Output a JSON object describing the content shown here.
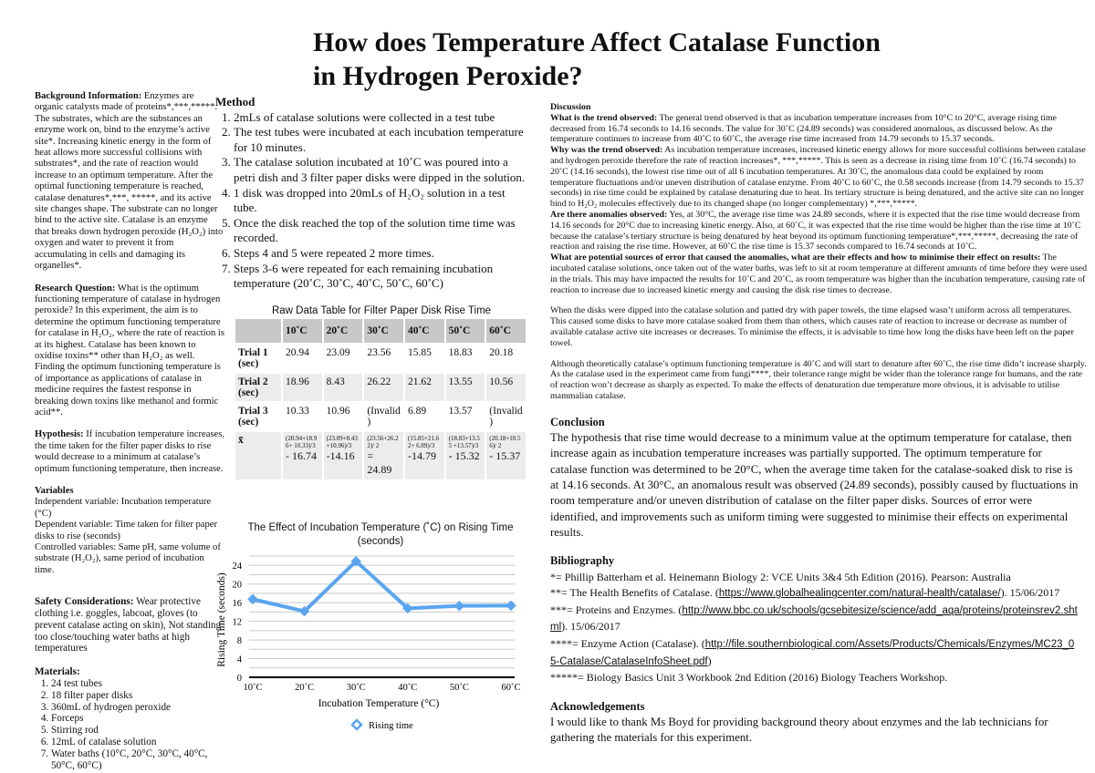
{
  "title": "How does Temperature Affect Catalase Function in Hydrogen Peroxide?",
  "left": {
    "background": {
      "label": "Background Information:",
      "text": " Enzymes are organic catalysts made of proteins*,***,*****. The substrates, which are the substances an enzyme work on, bind to the enzyme’s active site*. Increasing kinetic energy in the form of heat allows more successful collisions with substrates*, and the rate of reaction would increase to an optimum temperature. After the optimal functioning temperature is reached, catalase denatures*,***, *****, and its active site changes shape. The substrate can no longer bind to the active site. Catalase is an enzyme that breaks down hydrogen peroxide (H₂O₂) into oxygen and water to prevent it from accumulating in cells and damaging its organelles*."
    },
    "research": {
      "label": "Research Question:",
      "text": " What is the optimum functioning temperature of catalase in hydrogen peroxide? In this experiment, the aim is to determine the optimum functioning temperature for catalase in H₂O₂, where the rate of reaction is at its highest. Catalase has been known to oxidise toxins** other than H₂O₂ as well. Finding the optimum functioning temperature is of importance as applications of catalase in medicine requires the fastest response in breaking down toxins like methanol and formic acid**."
    },
    "hypothesis": {
      "label": "Hypothesis:",
      "text": " If incubation temperature increases, the time taken for the filter paper disks to rise would decrease to a minimum at catalase’s optimum functioning temperature, then increase."
    },
    "variables": {
      "label": "Variables",
      "independent": "Independent variable: Incubation temperature (°C)",
      "dependent": "Dependent variable: Time taken for filter paper disks to rise (seconds)",
      "controlled": "Controlled variables: Same pH, same volume of substrate (H₂O₂), same period of incubation time."
    },
    "safety": {
      "label": "Safety Considerations:",
      "text": " Wear protective clothing i.e. goggles, labcoat, gloves (to prevent catalase acting on skin), Not standing too close/touching water baths at high temperatures"
    },
    "materials": {
      "label": "Materials:",
      "items": [
        "24 test tubes",
        "18 filter paper disks",
        "360mL of hydrogen peroxide",
        "Forceps",
        "Stirring rod",
        "12mL of catalase solution",
        "Water baths (10°C, 20°C, 30°C, 40°C, 50°C, 60°C)"
      ]
    }
  },
  "method": {
    "label": "Method",
    "steps": [
      "2mLs of catalase solutions were collected in a test tube",
      "The test tubes were incubated at each incubation temperature for 10 minutes.",
      "The catalase solution incubated at 10˚C was poured into a petri dish and 3 filter paper disks were dipped in the solution.",
      "1 disk was dropped into 20mLs of H₂O₂ solution in a test tube.",
      "Once the disk reached the top of the solution time time was recorded.",
      "Steps 4 and 5 were repeated 2 more times.",
      "Steps 3-6 were repeated for each remaining incubation temperature (20˚C, 30˚C, 40˚C, 50˚C, 60˚C)"
    ]
  },
  "table": {
    "title": "Raw Data Table for Filter Paper Disk Rise Time",
    "headers": [
      "",
      "10˚C",
      "20˚C",
      "30˚C",
      "40˚C",
      "50˚C",
      "60˚C"
    ],
    "rows": [
      [
        "Trial 1 (sec)",
        "20.94",
        "23.09",
        "23.56",
        "15.85",
        "18.83",
        "20.18"
      ],
      [
        "Trial 2 (sec)",
        "18.96",
        "8.43",
        "26.22",
        "21.62",
        "13.55",
        "10.56"
      ],
      [
        "Trial 3 (sec)",
        "10.33",
        "10.96",
        "(Invalid)",
        "6.89",
        "13.57",
        "(Invalid)"
      ]
    ],
    "mean_label": "x̄",
    "mean_formulas": [
      "(20.94+18.96+ 10.33)/3",
      "(23.09+8.43 +10.96)/3",
      "(23.56+26.22)/ 2",
      "(15.85+21.62+ 6.89)/3",
      "(18.83+13.55 +13.57)/3",
      "(20.18+10.56)/ 2"
    ],
    "mean_values": [
      "- 16.74",
      "-14.16",
      "= 24.89",
      "-14.79",
      "- 15.32",
      "- 15.37"
    ]
  },
  "chart_data": {
    "type": "line",
    "title": "The Effect of Incubation Temperature (˚C) on Rising Time (seconds)",
    "xlabel": "Incubation Temperature (°C)",
    "ylabel": "Rising Time (seconds)",
    "categories": [
      "10˚C",
      "20˚C",
      "30˚C",
      "40˚C",
      "50˚C",
      "60˚C"
    ],
    "series": [
      {
        "name": "Rising time",
        "values": [
          16.74,
          14.16,
          24.89,
          14.79,
          15.32,
          15.37
        ],
        "color": "#5aa5f0"
      }
    ],
    "ylim": [
      0,
      26
    ],
    "yticks": [
      0,
      4,
      8,
      12,
      16,
      20,
      24
    ],
    "grid": true,
    "legend": "bottom"
  },
  "discussion": {
    "label": "Discussion",
    "trend_label": "What is the trend observed:",
    "trend": " The general trend observed is that as incubation temperature increases from 10°C to 20°C, average rising time decreased from 16.74 seconds to 14.16 seconds. The value for 30˚C (24.89 seconds) was considered anomalous, as discussed below. As the temperature continues to increase from 40˚C to 60˚C, the average rise time increased from 14.79 seconds to 15.37 seconds.",
    "why_label": "Why was the trend observed:",
    "why": " As incubation temperature increases, increased kinetic energy allows for more successful collisions between catalase and hydrogen peroxide therefore the rate of reaction increases*, ***,*****. This is seen as a decrease in rising time from 10˚C  (16.74 seconds) to 20˚C (14.16 seconds), the lowest rise time out of all 6 incubation temperatures. At 30˚C, the anomalous data could be explained by room temperature fluctuations and/or uneven distribution of catalase enzyme. From 40˚C to 60˚C, the 0.58 seconds increase (from 14.79 seconds to 15.37 seconds) in rise time could be explained by catalase denaturing due to heat. Its tertiary structure is being denatured, and the active site can no longer bind to H₂O₂ molecules effectively due to its changed shape (no longer complementary) *,***,*****.",
    "anomalies_label": "Are there anomalies observed:",
    "anomalies": " Yes, at 30°C, the average rise time was 24.89 seconds, where it is expected that the rise time would decrease from 14.16 seconds for 20°C due to increasing kinetic energy. Also, at 60˚C, it was expected that the rise time would be higher than the rise time at 10˚C because the catalase’s tertiary structure is being denatured by heat beyond its optimum functioning temperature*,***,*****, decreasing the rate of reaction and raising the rise time. However, at 60˚C the rise time is 15.37 seconds compared to 16.74 seconds at 10˚C.",
    "errors_label": "What are potential sources of error that caused the anomalies, what are their effects and how to minimise their effect on results:",
    "errors": " The incubated catalase solutions, once taken out of the water baths, was left to sit at room temperature at different amounts of time before they were used in the trials. This may have impacted the results for 10˚C and 20˚C, as room temperature was higher than the incubation temperature, causing rate of reaction to increase due to increased kinetic energy and causing the disk rise times to decrease.",
    "para2": "When the disks were dipped into the catalase solution and patted dry with paper towels, the time elapsed wasn’t uniform across all temperatures. This caused some disks to have more catalase soaked from them than others, which causes rate of reaction to increase or decrease as number of available catalase active site increases or decreases. To minimise the effects, it is advisable to time how long the disks have been left on the paper towel.",
    "para3": "Although theoretically catalase’s optimum functioning temperature is 40˚C and will start to denature after 60˚C, the rise time didn’t increase sharply. As the catalase used in the experiment came from fungi****, their tolerance range might be wider than the tolerance range for humans, and the rate of reaction won’t decrease as sharply as expected. To make the effects of denaturation due temperature more obvious, it is advisable to utilise mammalian catalase."
  },
  "conclusion": {
    "label": "Conclusion",
    "text": "The hypothesis that rise time would decrease to a minimum value at the optimum temperature for catalase, then increase again as incubation temperature increases was partially supported. The optimum temperature for catalase function was determined to be 20°C, when the average time taken for the catalase-soaked disk to rise is at 14.16 seconds. At 30°C, an anomalous result was observed (24.89 seconds), possibly caused by fluctuations in room temperature and/or uneven distribution of catalase on the filter paper disks. Sources of error were identified, and improvements such as uniform timing were suggested to minimise their effects on experimental results."
  },
  "bibliography": {
    "label": "Bibliography",
    "b1": "*= Phillip Batterham et al. Heinemann Biology 2: VCE Units 3&4 5th Edition (2016). Pearson: Australia",
    "b2_pre": "**= The Health Benefits of Catalase. (",
    "b2_link": "https://www.globalhealingcenter.com/natural-health/catalase/",
    "b2_post": "). 15/06/2017",
    "b3_pre": "***= Proteins and Enzymes. (",
    "b3_link": "http://www.bbc.co.uk/schools/gcsebitesize/science/add_aqa/proteins/proteinsrev2.shtml",
    "b3_post": "). 15/06/2017",
    "b4_pre": "****= Enzyme Action (Catalase). (",
    "b4_link": "http://file.southernbiological.com/Assets/Products/Chemicals/Enzymes/MC23_05-Catalase/CatalaseInfoSheet.pdf",
    "b4_post": ")",
    "b5": "*****= Biology Basics Unit 3 Workbook 2nd Edition (2016) Biology Teachers Workshop."
  },
  "acknowledgements": {
    "label": "Acknowledgements",
    "text": "I would like to thank Ms Boyd for providing background theory about enzymes and the lab technicians for gathering the materials for this experiment."
  }
}
